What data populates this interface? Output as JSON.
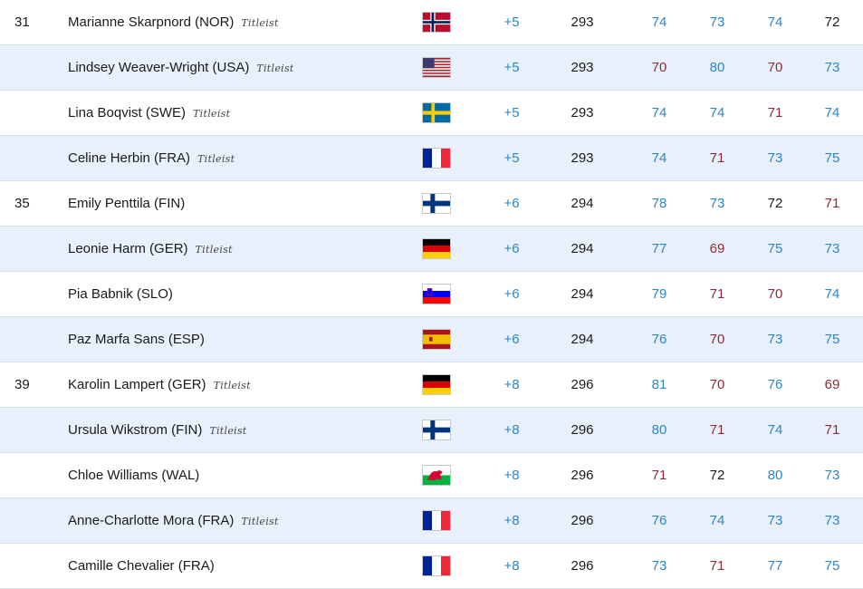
{
  "leaderboard": {
    "rows": [
      {
        "pos": "31",
        "name": "Marianne Skarpnord (NOR)",
        "sponsor": "Titleist",
        "flag": "NOR",
        "to_par": "+5",
        "total": "293",
        "rounds": [
          {
            "v": "74",
            "c": "blue"
          },
          {
            "v": "73",
            "c": "blue"
          },
          {
            "v": "74",
            "c": "blue"
          },
          {
            "v": "72",
            "c": "black"
          }
        ]
      },
      {
        "pos": "",
        "name": "Lindsey Weaver-Wright (USA)",
        "sponsor": "Titleist",
        "flag": "USA",
        "to_par": "+5",
        "total": "293",
        "rounds": [
          {
            "v": "70",
            "c": "red"
          },
          {
            "v": "80",
            "c": "blue"
          },
          {
            "v": "70",
            "c": "red"
          },
          {
            "v": "73",
            "c": "blue"
          }
        ]
      },
      {
        "pos": "",
        "name": "Lina Boqvist (SWE)",
        "sponsor": "Titleist",
        "flag": "SWE",
        "to_par": "+5",
        "total": "293",
        "rounds": [
          {
            "v": "74",
            "c": "blue"
          },
          {
            "v": "74",
            "c": "blue"
          },
          {
            "v": "71",
            "c": "red"
          },
          {
            "v": "74",
            "c": "blue"
          }
        ]
      },
      {
        "pos": "",
        "name": "Celine Herbin (FRA)",
        "sponsor": "Titleist",
        "flag": "FRA",
        "to_par": "+5",
        "total": "293",
        "rounds": [
          {
            "v": "74",
            "c": "blue"
          },
          {
            "v": "71",
            "c": "red"
          },
          {
            "v": "73",
            "c": "blue"
          },
          {
            "v": "75",
            "c": "blue"
          }
        ]
      },
      {
        "pos": "35",
        "name": "Emily Penttila (FIN)",
        "sponsor": "",
        "flag": "FIN",
        "to_par": "+6",
        "total": "294",
        "rounds": [
          {
            "v": "78",
            "c": "blue"
          },
          {
            "v": "73",
            "c": "blue"
          },
          {
            "v": "72",
            "c": "black"
          },
          {
            "v": "71",
            "c": "red"
          }
        ]
      },
      {
        "pos": "",
        "name": "Leonie Harm (GER)",
        "sponsor": "Titleist",
        "flag": "GER",
        "to_par": "+6",
        "total": "294",
        "rounds": [
          {
            "v": "77",
            "c": "blue"
          },
          {
            "v": "69",
            "c": "red"
          },
          {
            "v": "75",
            "c": "blue"
          },
          {
            "v": "73",
            "c": "blue"
          }
        ]
      },
      {
        "pos": "",
        "name": "Pia Babnik (SLO)",
        "sponsor": "",
        "flag": "SLO",
        "to_par": "+6",
        "total": "294",
        "rounds": [
          {
            "v": "79",
            "c": "blue"
          },
          {
            "v": "71",
            "c": "red"
          },
          {
            "v": "70",
            "c": "red"
          },
          {
            "v": "74",
            "c": "blue"
          }
        ]
      },
      {
        "pos": "",
        "name": "Paz Marfa Sans (ESP)",
        "sponsor": "",
        "flag": "ESP",
        "to_par": "+6",
        "total": "294",
        "rounds": [
          {
            "v": "76",
            "c": "blue"
          },
          {
            "v": "70",
            "c": "red"
          },
          {
            "v": "73",
            "c": "blue"
          },
          {
            "v": "75",
            "c": "blue"
          }
        ]
      },
      {
        "pos": "39",
        "name": "Karolin Lampert (GER)",
        "sponsor": "Titleist",
        "flag": "GER",
        "to_par": "+8",
        "total": "296",
        "rounds": [
          {
            "v": "81",
            "c": "blue"
          },
          {
            "v": "70",
            "c": "red"
          },
          {
            "v": "76",
            "c": "blue"
          },
          {
            "v": "69",
            "c": "red"
          }
        ]
      },
      {
        "pos": "",
        "name": "Ursula Wikstrom (FIN)",
        "sponsor": "Titleist",
        "flag": "FIN",
        "to_par": "+8",
        "total": "296",
        "rounds": [
          {
            "v": "80",
            "c": "blue"
          },
          {
            "v": "71",
            "c": "red"
          },
          {
            "v": "74",
            "c": "blue"
          },
          {
            "v": "71",
            "c": "red"
          }
        ]
      },
      {
        "pos": "",
        "name": "Chloe Williams (WAL)",
        "sponsor": "",
        "flag": "WAL",
        "to_par": "+8",
        "total": "296",
        "rounds": [
          {
            "v": "71",
            "c": "red"
          },
          {
            "v": "72",
            "c": "black"
          },
          {
            "v": "80",
            "c": "blue"
          },
          {
            "v": "73",
            "c": "blue"
          }
        ]
      },
      {
        "pos": "",
        "name": "Anne-Charlotte Mora (FRA)",
        "sponsor": "Titleist",
        "flag": "FRA",
        "to_par": "+8",
        "total": "296",
        "rounds": [
          {
            "v": "76",
            "c": "blue"
          },
          {
            "v": "74",
            "c": "blue"
          },
          {
            "v": "73",
            "c": "blue"
          },
          {
            "v": "73",
            "c": "blue"
          }
        ]
      },
      {
        "pos": "",
        "name": "Camille Chevalier (FRA)",
        "sponsor": "",
        "flag": "FRA",
        "to_par": "+8",
        "total": "296",
        "rounds": [
          {
            "v": "73",
            "c": "blue"
          },
          {
            "v": "71",
            "c": "red"
          },
          {
            "v": "77",
            "c": "blue"
          },
          {
            "v": "75",
            "c": "blue"
          }
        ]
      }
    ]
  },
  "colors": {
    "blue": "#2b86c5",
    "red": "#8e2a36",
    "black": "#1a1a1a",
    "alt_row": "#e8f1fb"
  }
}
